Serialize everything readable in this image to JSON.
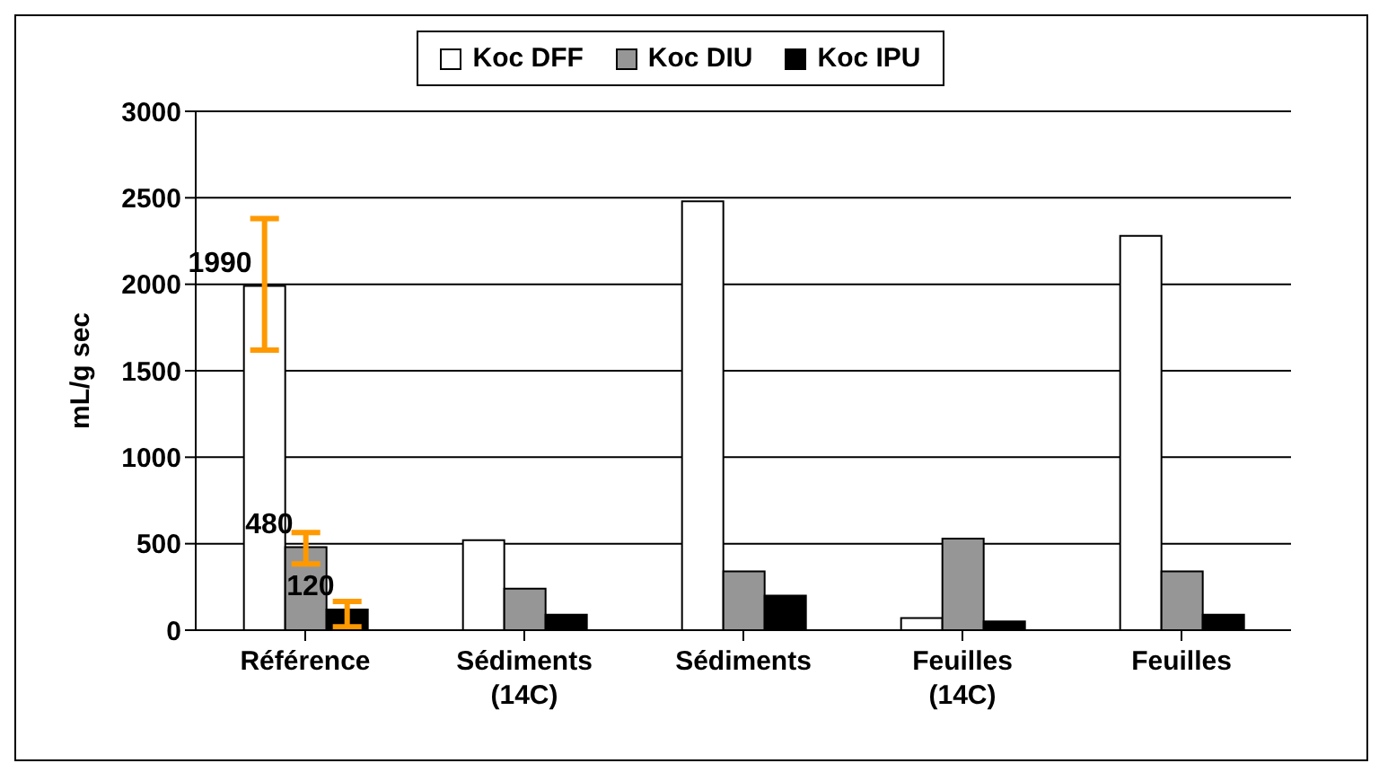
{
  "chart_data": {
    "type": "bar",
    "ylabel": "mL/g sec",
    "categories": [
      "Référence",
      "Sédiments\n(14C)",
      "Sédiments",
      "Feuilles\n(14C)",
      "Feuilles"
    ],
    "series": [
      {
        "name": "Koc DFF",
        "color": "#ffffff",
        "values": [
          1990,
          520,
          2480,
          70,
          2280
        ],
        "errors": [
          [
            1620,
            2380
          ],
          null,
          null,
          null,
          null
        ],
        "value_labels": [
          "1990",
          null,
          null,
          null,
          null
        ]
      },
      {
        "name": "Koc DIU",
        "color": "#969696",
        "values": [
          480,
          240,
          340,
          530,
          340
        ],
        "errors": [
          [
            383,
            564
          ],
          null,
          null,
          null,
          null
        ],
        "value_labels": [
          "480",
          null,
          null,
          null,
          null
        ]
      },
      {
        "name": "Koc IPU",
        "color": "#000000",
        "values": [
          120,
          90,
          200,
          50,
          90
        ],
        "errors": [
          [
            19,
            166
          ],
          null,
          null,
          null,
          null
        ],
        "value_labels": [
          "120",
          null,
          null,
          null,
          null
        ]
      }
    ],
    "ylim": [
      0,
      3000
    ],
    "yticks": [
      0,
      500,
      1000,
      1500,
      2000,
      2500,
      3000
    ],
    "grid": "y",
    "legend": "top"
  }
}
